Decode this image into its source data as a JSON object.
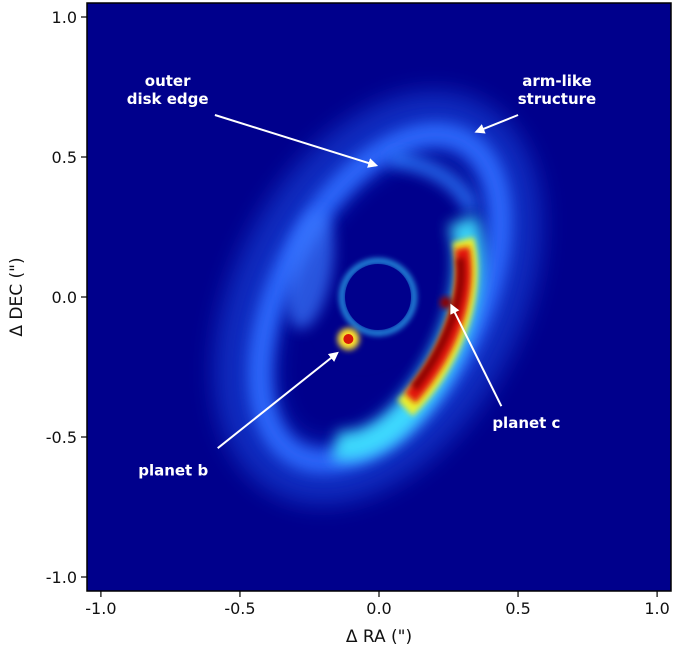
{
  "chart_data": {
    "type": "heatmap",
    "title": "",
    "xlabel": "Δ RA (\")",
    "ylabel": "Δ DEC (\")",
    "xlim": [
      -1.05,
      1.05
    ],
    "ylim": [
      -1.05,
      1.05
    ],
    "x_ticks": [
      -1.0,
      -0.5,
      0.0,
      0.5,
      1.0
    ],
    "x_tick_labels": [
      "-1.0",
      "-0.5",
      "0.0",
      "0.5",
      "1.0"
    ],
    "y_ticks": [
      -1.0,
      -0.5,
      0.0,
      0.5,
      1.0
    ],
    "y_tick_labels": [
      "-1.0",
      "-0.5",
      "0.0",
      "0.5",
      "1.0"
    ],
    "grid": false,
    "colormap": "jet",
    "background_color": "#00008c",
    "annotations": [
      {
        "text_lines": [
          "outer",
          "disk edge"
        ],
        "text_x": -0.76,
        "text_y": 0.74,
        "arrow_from": [
          -0.59,
          0.65
        ],
        "arrow_to": [
          -0.01,
          0.47
        ]
      },
      {
        "text_lines": [
          "arm-like",
          "structure"
        ],
        "text_x": 0.64,
        "text_y": 0.74,
        "arrow_from": [
          0.5,
          0.65
        ],
        "arrow_to": [
          0.35,
          0.59
        ]
      },
      {
        "text_lines": [
          "planet c"
        ],
        "text_x": 0.53,
        "text_y": -0.45,
        "arrow_from": [
          0.44,
          -0.39
        ],
        "arrow_to": [
          0.26,
          -0.03
        ]
      },
      {
        "text_lines": [
          "planet b"
        ],
        "text_x": -0.74,
        "text_y": -0.62,
        "arrow_from": [
          -0.58,
          -0.54
        ],
        "arrow_to": [
          -0.15,
          -0.2
        ]
      }
    ],
    "features": [
      {
        "name": "planet b",
        "x": -0.11,
        "y": -0.15
      },
      {
        "name": "planet c",
        "x": 0.24,
        "y": -0.02
      }
    ]
  }
}
